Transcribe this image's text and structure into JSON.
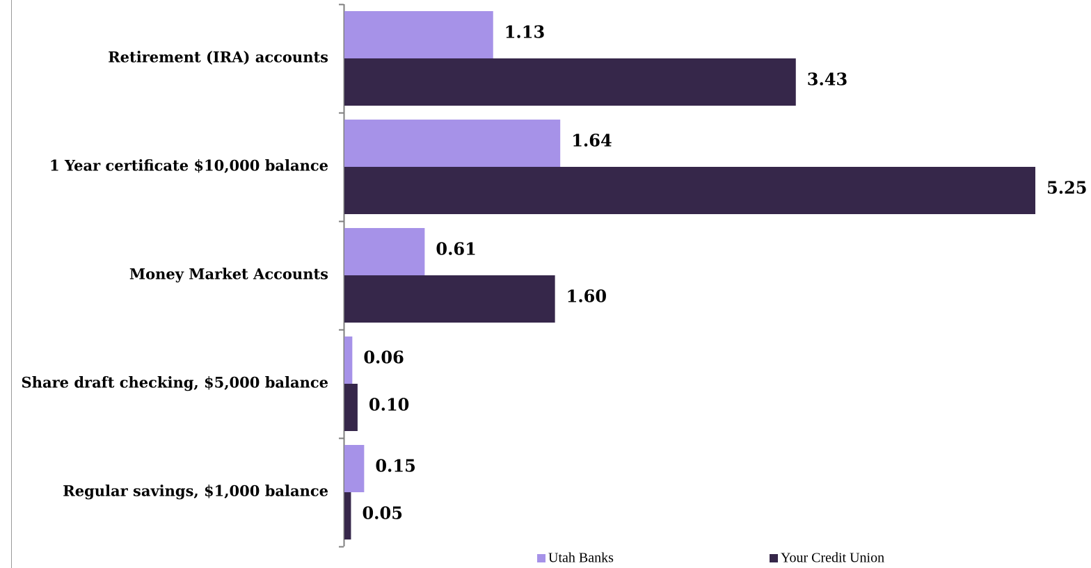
{
  "chart_data": {
    "type": "bar",
    "orientation": "horizontal",
    "categories": [
      "Retirement (IRA) accounts",
      "1 Year certificate $10,000 balance",
      "Money Market Accounts",
      "Share draft checking, $5,000 balance",
      "Regular savings, $1,000 balance"
    ],
    "series": [
      {
        "name": "Utah Banks",
        "color": "#a692e8",
        "values": [
          1.13,
          1.64,
          0.61,
          0.06,
          0.15
        ],
        "labels": [
          "1.13",
          "1.64",
          "0.61",
          "0.06",
          "0.15"
        ]
      },
      {
        "name": "Your Credit Union",
        "color": "#36274a",
        "values": [
          3.43,
          5.25,
          1.6,
          0.1,
          0.05
        ],
        "labels": [
          "3.43",
          "5.25",
          "1.60",
          "0.10",
          "0.05"
        ]
      }
    ],
    "xlim": [
      0,
      5.25
    ],
    "grid": false,
    "legend": "bottom"
  }
}
